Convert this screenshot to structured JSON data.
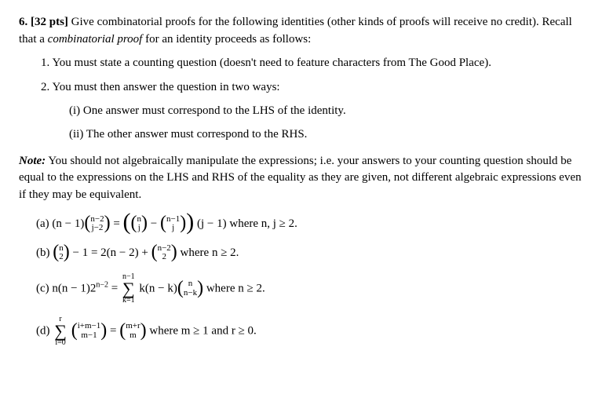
{
  "problem": {
    "number": "6.",
    "points": "[32 pts]",
    "intro_a": "Give combinatorial proofs for the following identities (other kinds of proofs will receive no credit). Recall that a ",
    "intro_italic": "combinatorial proof",
    "intro_b": " for an identity proceeds as follows:"
  },
  "steps": {
    "s1": "1.  You must state a counting question (doesn't need to feature characters from The Good Place).",
    "s2": "2.  You must then answer the question in two ways:",
    "s2i": "(i)  One answer must correspond to the LHS of the identity.",
    "s2ii": "(ii)  The other answer must correspond to the RHS."
  },
  "note": {
    "label": "Note:",
    "text": " You should not algebraically manipulate the expressions; i.e. your answers to your counting question should be equal to the expressions on the LHS and RHS of the equality as they are given, not different algebraic expressions even if they may be equivalent."
  },
  "parts": {
    "a": {
      "label": "(a)  ",
      "lhs_pre": "(n − 1)",
      "b1_top": "n−2",
      "b1_bot": "j−2",
      "eq": " = ",
      "b2_top": "n",
      "b2_bot": "j",
      "minus": " − ",
      "b3_top": "n−1",
      "b3_bot": "j",
      "rhs_post": " (j − 1)",
      "cond": " where n, j ≥ 2."
    },
    "b": {
      "label": "(b)  ",
      "b1_top": "n",
      "b1_bot": "2",
      "mid": " − 1 = 2(n − 2) + ",
      "b2_top": "n−2",
      "b2_bot": "2",
      "cond": " where n ≥ 2."
    },
    "c": {
      "label": "(c)  ",
      "lhs": "n(n − 1)2",
      "exp": "n−2",
      "eq": " = ",
      "sum_top": "n−1",
      "sum_bot": "k=1",
      "mid": " k(n − k)",
      "b1_top": "n",
      "b1_bot": "n−k",
      "cond": " where n ≥ 2."
    },
    "d": {
      "label": "(d)  ",
      "sum_top": "r",
      "sum_bot": "i=0",
      "b1_top": "i+m−1",
      "b1_bot": "m−1",
      "eq": " = ",
      "b2_top": "m+r",
      "b2_bot": "m",
      "cond": " where m ≥ 1 and r ≥ 0."
    }
  }
}
